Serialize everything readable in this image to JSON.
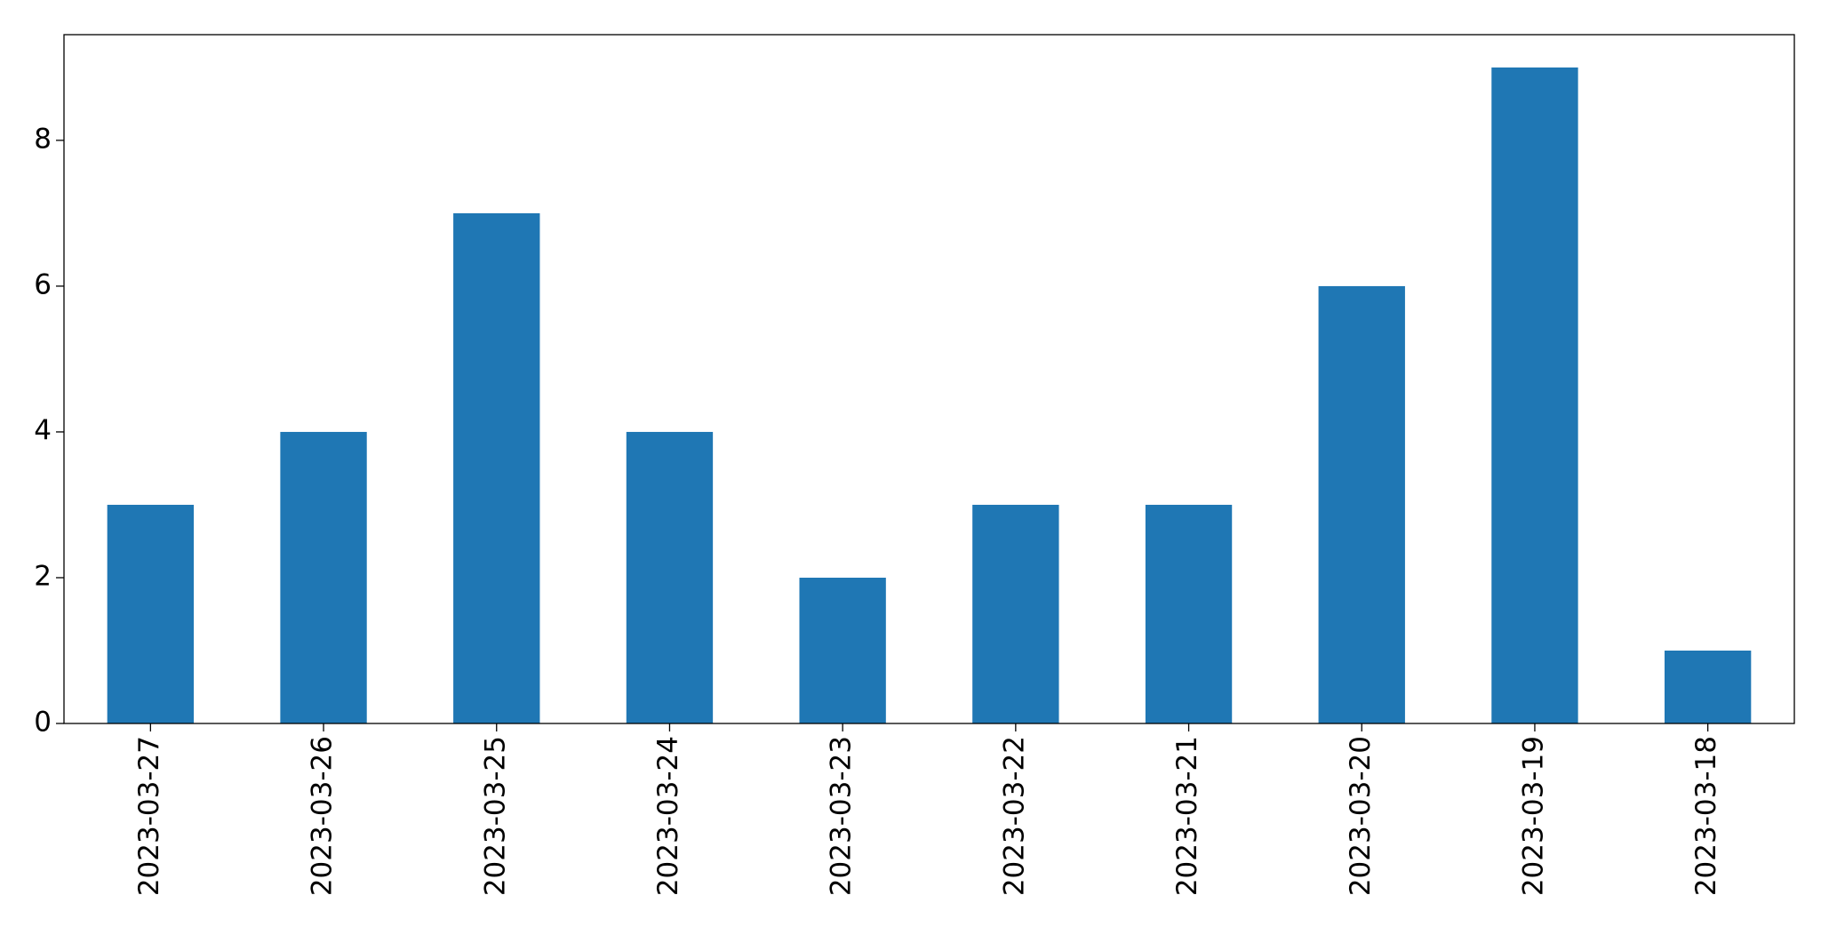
{
  "chart_data": {
    "type": "bar",
    "categories": [
      "2023-03-27",
      "2023-03-26",
      "2023-03-25",
      "2023-03-24",
      "2023-03-23",
      "2023-03-22",
      "2023-03-21",
      "2023-03-20",
      "2023-03-19",
      "2023-03-18"
    ],
    "values": [
      3,
      4,
      7,
      4,
      2,
      3,
      3,
      6,
      9,
      1
    ],
    "color": "#1f77b4",
    "ylim": [
      0,
      9.45
    ],
    "yticks": [
      0,
      2,
      4,
      6,
      8
    ],
    "grid": false
  }
}
